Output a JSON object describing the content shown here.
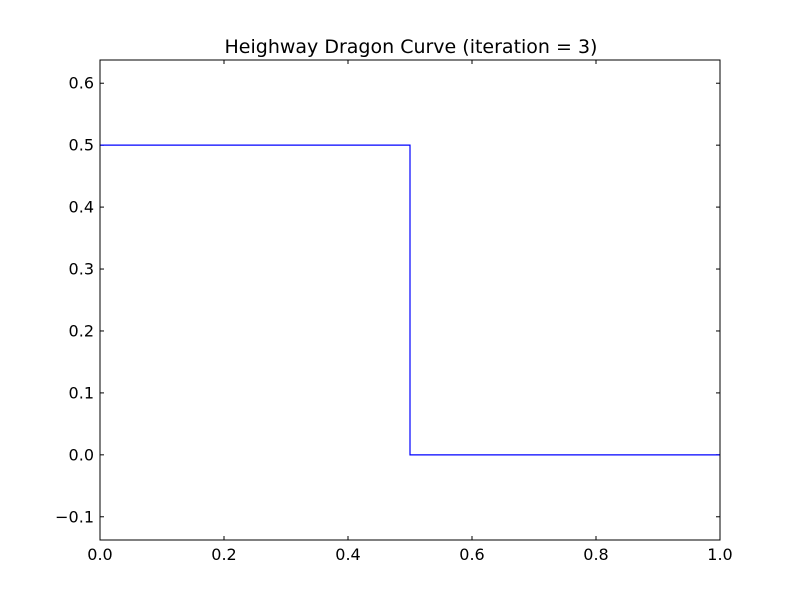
{
  "chart_data": {
    "type": "line",
    "title": "Heighway Dragon Curve  (iteration = 3)",
    "xlabel": "",
    "ylabel": "",
    "xlim": [
      0.0,
      1.0
    ],
    "ylim": [
      -0.1375,
      0.6375
    ],
    "grid": false,
    "x_ticks": [
      {
        "value": 0.0,
        "label": "0.0"
      },
      {
        "value": 0.2,
        "label": "0.2"
      },
      {
        "value": 0.4,
        "label": "0.4"
      },
      {
        "value": 0.6,
        "label": "0.6"
      },
      {
        "value": 0.8,
        "label": "0.8"
      },
      {
        "value": 1.0,
        "label": "1.0"
      }
    ],
    "y_ticks": [
      {
        "value": -0.1,
        "label": "−0.1"
      },
      {
        "value": 0.0,
        "label": "0.0"
      },
      {
        "value": 0.1,
        "label": "0.1"
      },
      {
        "value": 0.2,
        "label": "0.2"
      },
      {
        "value": 0.3,
        "label": "0.3"
      },
      {
        "value": 0.4,
        "label": "0.4"
      },
      {
        "value": 0.5,
        "label": "0.5"
      },
      {
        "value": 0.6,
        "label": "0.6"
      }
    ],
    "series": [
      {
        "color": "#0000ff",
        "points": [
          [
            0.0,
            0.5
          ],
          [
            0.5,
            0.5
          ],
          [
            0.5,
            0.0
          ],
          [
            1.0,
            0.0
          ]
        ]
      }
    ]
  }
}
